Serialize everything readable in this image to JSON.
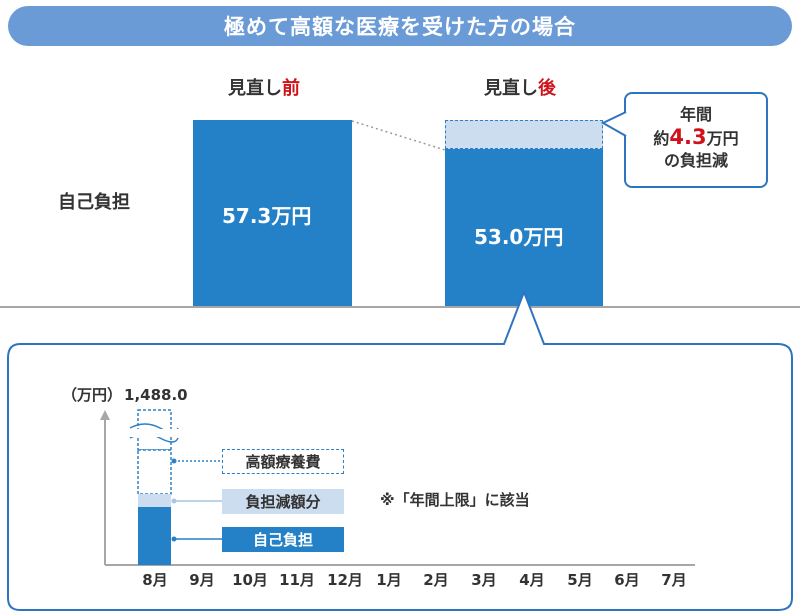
{
  "title": "極めて高額な医療を受けた方の場合",
  "top_chart": {
    "row_label": "自己負担",
    "before": {
      "header_prefix": "見直し",
      "header_accent": "前",
      "value_label": "57.3万円"
    },
    "after": {
      "header_prefix": "見直し",
      "header_accent": "後",
      "value_label": "53.0万円"
    },
    "callout": {
      "line1": "年間",
      "line2_prefix": "約",
      "line2_value": "4.3",
      "line2_suffix": "万円",
      "line3": "の負担減"
    }
  },
  "bottom_chart": {
    "y_unit": "（万円）",
    "y_top_value": "1,488.0",
    "months": [
      "8月",
      "9月",
      "10月",
      "11月",
      "12月",
      "1月",
      "2月",
      "3月",
      "4月",
      "5月",
      "6月",
      "7月"
    ],
    "legend": {
      "high_cost": "高額療養費",
      "reduction": "負担減額分",
      "self_pay": "自己負担"
    },
    "note": "※「年間上限」に該当"
  },
  "colors": {
    "title_bar": "#6b9bd6",
    "bar_blue": "#2480c7",
    "reduction_light": "#cdddf0",
    "accent_red": "#d0121b",
    "outline_blue": "#2e75c0"
  },
  "chart_data": [
    {
      "type": "bar",
      "categories": [
        "見直し前",
        "見直し後"
      ],
      "values": [
        57.3,
        53.0
      ],
      "annotations": [
        "年間約4.3万円の負担減"
      ]
    },
    {
      "type": "bar",
      "x": [
        "8月",
        "9月",
        "10月",
        "11月",
        "12月",
        "1月",
        "2月",
        "3月",
        "4月",
        "5月",
        "6月",
        "7月"
      ],
      "ylabel": "（万円）",
      "series": [
        {
          "name": "自己負担",
          "values": [
            53.0,
            0,
            0,
            0,
            0,
            0,
            0,
            0,
            0,
            0,
            0,
            0
          ]
        },
        {
          "name": "負担減額分",
          "values": [
            4.3,
            0,
            0,
            0,
            0,
            0,
            0,
            0,
            0,
            0,
            0,
            0
          ]
        },
        {
          "name": "高額療養費",
          "values": [
            1430.7,
            0,
            0,
            0,
            0,
            0,
            0,
            0,
            0,
            0,
            0,
            0
          ]
        }
      ],
      "total_first_month": 1488.0,
      "annotations": [
        "※「年間上限」に該当"
      ]
    }
  ]
}
